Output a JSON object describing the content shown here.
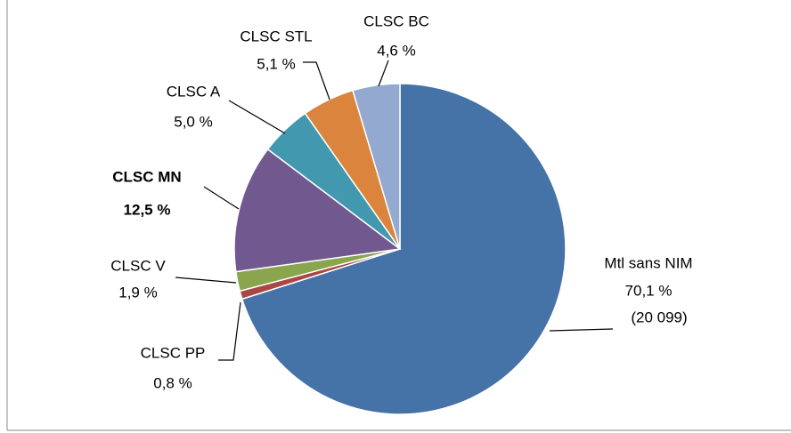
{
  "chart_data": {
    "type": "pie",
    "categories": [
      "Mtl sans NIM",
      "CLSC PP",
      "CLSC V",
      "CLSC MN",
      "CLSC A",
      "CLSC STL",
      "CLSC BC"
    ],
    "values": [
      70.1,
      0.8,
      1.9,
      12.5,
      5.0,
      5.1,
      4.6
    ],
    "value_labels": [
      "70,1 %",
      "0,8 %",
      "1,9 %",
      "12,5 %",
      "5,0 %",
      "5,1 %",
      "4,6 %"
    ],
    "colors": [
      "#4572a7",
      "#aa4643",
      "#89a54e",
      "#71588f",
      "#4198af",
      "#db843d",
      "#93a9cf"
    ],
    "emphasis": [
      false,
      false,
      false,
      true,
      false,
      false,
      false
    ],
    "annotation": "(20 099)"
  }
}
